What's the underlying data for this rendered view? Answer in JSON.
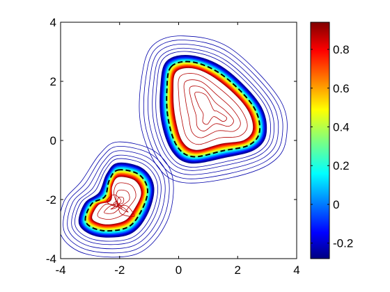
{
  "chart_data": {
    "type": "contour",
    "title": "",
    "xlabel": "",
    "ylabel": "",
    "xlim": [
      -4,
      4
    ],
    "ylim": [
      -4,
      4
    ],
    "x_ticks": [
      -4,
      -2,
      0,
      2,
      4
    ],
    "y_ticks": [
      -4,
      -2,
      0,
      2,
      4
    ],
    "x_tick_labels": [
      "-4",
      "-2",
      "0",
      "2",
      "4"
    ],
    "y_tick_labels": [
      "-4",
      "-2",
      "0",
      "2",
      "4"
    ],
    "grid": false,
    "colormap": "jet",
    "colorbar": {
      "range": [
        -0.28,
        0.94
      ],
      "ticks": [
        -0.2,
        0,
        0.2,
        0.4,
        0.6,
        0.8
      ],
      "tick_labels": [
        "-0.2",
        "0",
        "0.2",
        "0.4",
        "0.6",
        "0.8"
      ],
      "placement": "right"
    },
    "regions": [
      {
        "name": "",
        "center": [
          1.15,
          0.95
        ],
        "level_set_contour": [
          [
            -0.25,
            2.5
          ],
          [
            0.5,
            2.65
          ],
          [
            1.5,
            2.2
          ],
          [
            2.5,
            1.2
          ],
          [
            2.75,
            0.35
          ],
          [
            2.4,
            -0.15
          ],
          [
            1.5,
            -0.35
          ],
          [
            0.5,
            -0.55
          ],
          [
            -0.05,
            -0.2
          ],
          [
            -0.35,
            0.7
          ],
          [
            -0.4,
            1.7
          ]
        ]
      },
      {
        "name": "",
        "center": [
          -2.05,
          -2.2
        ],
        "level_set_contour": [
          [
            -2.05,
            -1.0
          ],
          [
            -1.35,
            -1.15
          ],
          [
            -1.05,
            -1.7
          ],
          [
            -1.3,
            -2.45
          ],
          [
            -1.75,
            -2.95
          ],
          [
            -2.6,
            -3.05
          ],
          [
            -3.15,
            -2.75
          ],
          [
            -2.95,
            -2.15
          ],
          [
            -2.5,
            -1.9
          ],
          [
            -2.35,
            -1.35
          ]
        ]
      }
    ],
    "level_set_style": {
      "color": "#000000",
      "dash": "dashed"
    },
    "inside_level_color": "#b40000",
    "outside_level_color": "#0000aa"
  }
}
